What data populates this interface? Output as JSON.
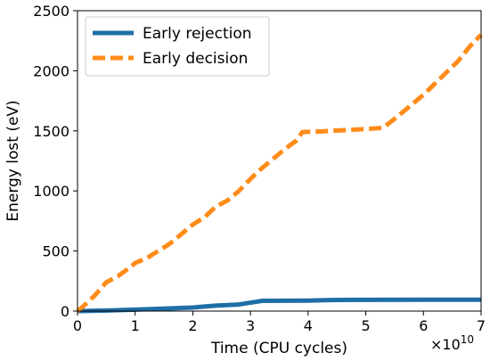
{
  "chart_data": {
    "type": "line",
    "xlabel": "Time (CPU cycles)",
    "ylabel": "Energy lost (eV)",
    "x_scale_label": "×10",
    "x_scale_exponent": "10",
    "xlim": [
      0,
      7
    ],
    "ylim": [
      0,
      2500
    ],
    "xticks": [
      0,
      1,
      2,
      3,
      4,
      5,
      6,
      7
    ],
    "yticks": [
      0,
      500,
      1000,
      1500,
      2000,
      2500
    ],
    "grid": false,
    "legend_position": "top-left",
    "series": [
      {
        "name": "Early rejection",
        "color": "#1f6fa6",
        "style": "solid",
        "x": [
          0,
          0.5,
          1.0,
          1.5,
          2.0,
          2.2,
          2.4,
          2.6,
          2.8,
          3.0,
          3.2,
          3.6,
          4.0,
          4.4,
          5.0,
          6.0,
          7.0
        ],
        "y": [
          0,
          5,
          12,
          20,
          30,
          38,
          45,
          50,
          55,
          70,
          85,
          86,
          87,
          92,
          94,
          95,
          95
        ]
      },
      {
        "name": "Early decision",
        "color": "#ff8c1a",
        "style": "dashed",
        "x": [
          0,
          0.1,
          0.3,
          0.5,
          0.7,
          0.9,
          1.0,
          1.2,
          1.4,
          1.6,
          1.8,
          2.0,
          2.2,
          2.4,
          2.6,
          2.8,
          3.0,
          3.2,
          3.4,
          3.6,
          3.8,
          3.9,
          4.2,
          4.6,
          5.0,
          5.3,
          5.5,
          5.7,
          6.0,
          6.3,
          6.6,
          6.8,
          7.0
        ],
        "y": [
          0,
          40,
          130,
          240,
          290,
          360,
          400,
          440,
          500,
          560,
          640,
          720,
          780,
          870,
          920,
          1000,
          1100,
          1190,
          1270,
          1350,
          1420,
          1490,
          1495,
          1505,
          1515,
          1525,
          1600,
          1680,
          1800,
          1940,
          2080,
          2200,
          2300
        ]
      }
    ]
  }
}
